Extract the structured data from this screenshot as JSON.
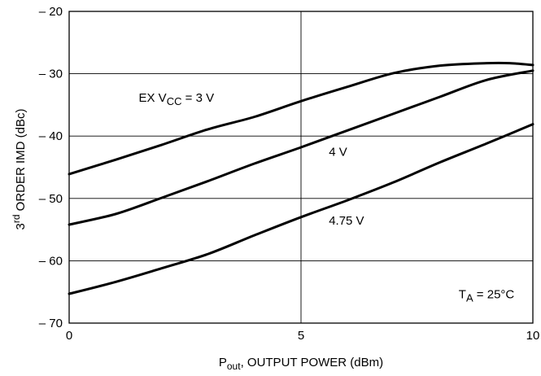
{
  "chart_data": {
    "type": "line",
    "xlabel": {
      "main": "P",
      "sub": "out",
      "rest": ", OUTPUT POWER (dBm)"
    },
    "ylabel": {
      "pre": "3",
      "sup": "rd",
      "rest": " ORDER IMD (dBc)"
    },
    "xlim": [
      0,
      10
    ],
    "ylim": [
      -70,
      -20
    ],
    "x_ticks": [
      {
        "value": 0,
        "label": "0"
      },
      {
        "value": 5,
        "label": "5"
      },
      {
        "value": 10,
        "label": "10"
      }
    ],
    "y_ticks": [
      {
        "value": -20,
        "label": "– 20"
      },
      {
        "value": -30,
        "label": "– 30"
      },
      {
        "value": -40,
        "label": "– 40"
      },
      {
        "value": -50,
        "label": "– 50"
      },
      {
        "value": -60,
        "label": "– 60"
      },
      {
        "value": -70,
        "label": "– 70"
      }
    ],
    "grid": true,
    "series": [
      {
        "points": [
          [
            0,
            -46.1
          ],
          [
            1,
            -43.8
          ],
          [
            2,
            -41.4
          ],
          [
            3,
            -38.9
          ],
          [
            4,
            -36.9
          ],
          [
            5,
            -34.4
          ],
          [
            6,
            -32.1
          ],
          [
            7,
            -29.9
          ],
          [
            8,
            -28.7
          ],
          [
            9,
            -28.3
          ],
          [
            9.5,
            -28.3
          ],
          [
            10,
            -28.6
          ]
        ]
      },
      {
        "points": [
          [
            0,
            -54.2
          ],
          [
            1,
            -52.5
          ],
          [
            2,
            -49.9
          ],
          [
            3,
            -47.2
          ],
          [
            4,
            -44.4
          ],
          [
            5,
            -41.8
          ],
          [
            6,
            -39.1
          ],
          [
            7,
            -36.4
          ],
          [
            8,
            -33.7
          ],
          [
            9,
            -31.0
          ],
          [
            10,
            -29.5
          ]
        ]
      },
      {
        "points": [
          [
            0,
            -65.3
          ],
          [
            1,
            -63.4
          ],
          [
            2,
            -61.2
          ],
          [
            3,
            -58.9
          ],
          [
            4,
            -55.9
          ],
          [
            5,
            -53.0
          ],
          [
            6,
            -50.3
          ],
          [
            7,
            -47.4
          ],
          [
            8,
            -44.2
          ],
          [
            9,
            -41.2
          ],
          [
            10,
            -38.1
          ]
        ]
      }
    ],
    "annotations": [
      {
        "text": "EX V",
        "sub": "CC",
        "after": " = 3 V",
        "x": 1.5,
        "y": -34.5
      },
      {
        "text": "4 V",
        "x": 5.6,
        "y": -43.2
      },
      {
        "text": "4.75 V",
        "x": 5.6,
        "y": -54.2
      },
      {
        "text": "T",
        "sub": "A",
        "after": " = 25°C",
        "x": 8.4,
        "y": -66.0
      }
    ]
  }
}
